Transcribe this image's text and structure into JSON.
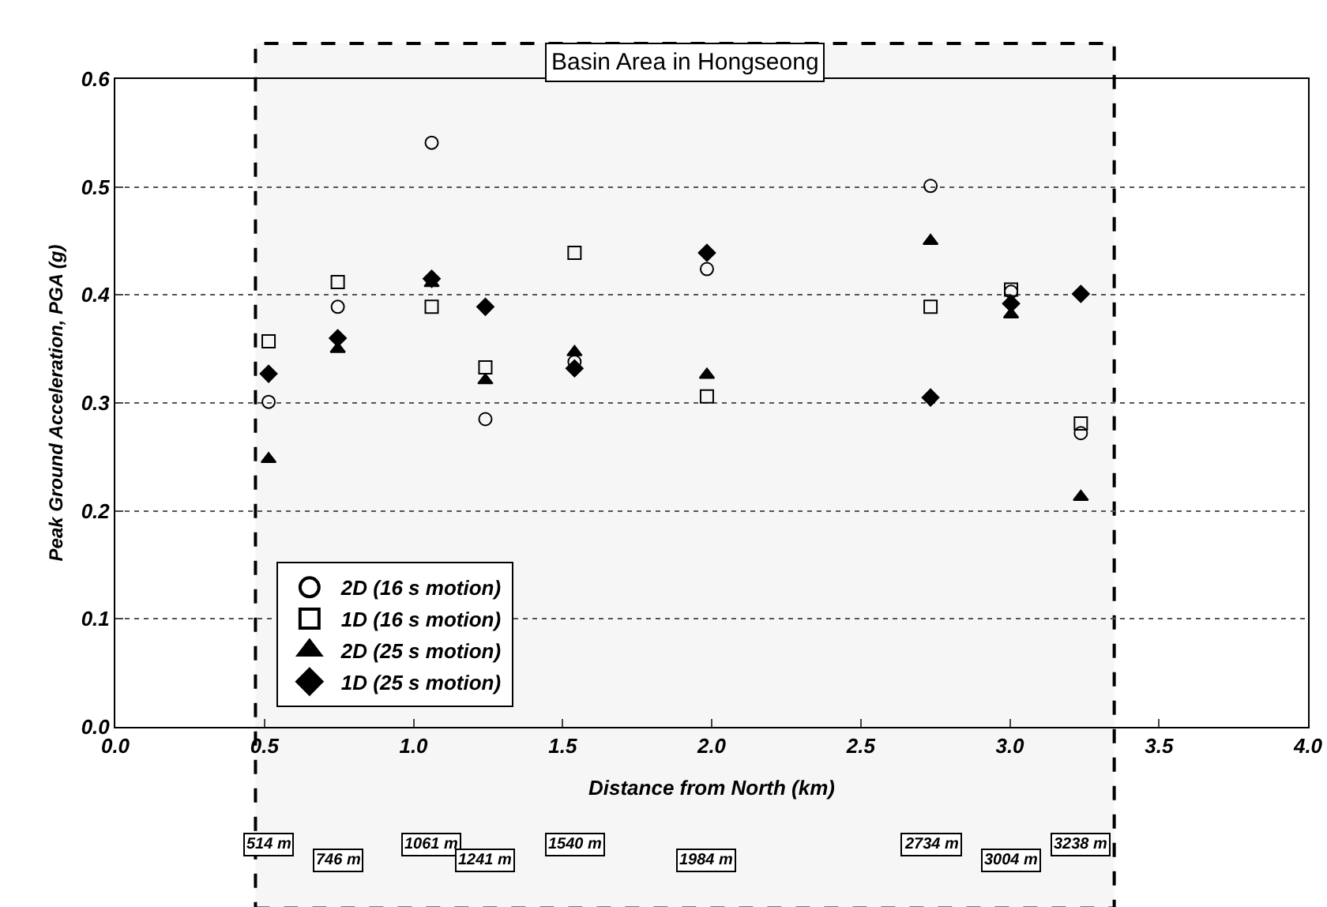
{
  "chart_data": {
    "type": "scatter",
    "xlabel": "Distance from North (km)",
    "ylabel": "Peak Ground Acceleration, PGA (g)",
    "x": [
      0.514,
      0.746,
      1.061,
      1.241,
      1.54,
      1.984,
      2.734,
      3.004,
      3.238
    ],
    "series": [
      {
        "name": "2D (16 s motion)",
        "color": "#000000",
        "marker": "circle-open",
        "values": [
          0.301,
          0.389,
          0.541,
          0.285,
          0.338,
          0.424,
          0.501,
          0.403,
          0.272
        ]
      },
      {
        "name": "1D (16 s motion)",
        "color": "#000000",
        "marker": "square-open",
        "values": [
          0.357,
          0.412,
          0.389,
          0.333,
          0.439,
          0.306,
          0.389,
          0.405,
          0.281
        ]
      },
      {
        "name": "2D (25 s motion)",
        "color": "#000000",
        "marker": "triangle",
        "values": [
          0.248,
          0.35,
          0.411,
          0.321,
          0.347,
          0.326,
          0.45,
          0.382,
          0.213
        ]
      },
      {
        "name": "1D (25 s motion)",
        "color": "#000000",
        "marker": "diamond",
        "values": [
          0.327,
          0.36,
          0.415,
          0.389,
          0.332,
          0.439,
          0.305,
          0.392,
          0.401
        ]
      }
    ],
    "xlim": [
      0,
      4
    ],
    "xticks": [
      {
        "value": 0,
        "label": "0.0"
      },
      0.5,
      {
        "value": 1,
        "label": "1.0"
      },
      1.5,
      {
        "value": 2,
        "label": "2.0"
      },
      2.5,
      {
        "value": 3,
        "label": "3.0"
      },
      3.5,
      {
        "value": 4,
        "label": "4.0"
      }
    ],
    "ylim": [
      0,
      0.6
    ],
    "yticks": [
      {
        "value": 0,
        "label": "0.0"
      },
      0.1,
      0.2,
      0.3,
      0.4,
      0.5,
      0.6
    ],
    "grid": "y",
    "legend": "bottom left",
    "bands": [
      {
        "axis": "x",
        "from": 0.47,
        "to": 3.35,
        "label": "Basin Area in Hongseong"
      }
    ],
    "annotations": [
      "514 m",
      "746 m",
      "1061 m",
      "1241 m",
      "1540 m",
      "1984 m",
      "2734 m",
      "3004 m",
      "3238 m"
    ]
  }
}
